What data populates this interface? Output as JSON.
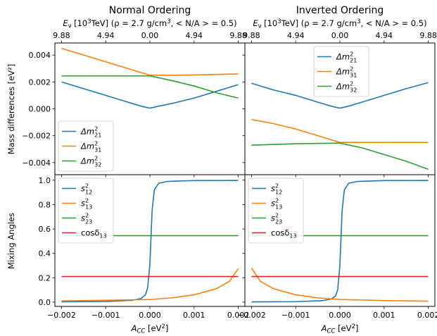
{
  "figure": {
    "xlabel_main": "A",
    "xlabel_sub": "CC",
    "xlabel_unit": " [eV",
    "xlabel_sup": "2",
    "xlabel_close": "]",
    "top_axis_label": "E",
    "top_axis_sub": "ν",
    "top_axis_rest": " [10",
    "top_axis_sup": "3",
    "top_axis_rest2": "TeV] (ρ = 2.7 g/cm",
    "top_axis_sup2": "3",
    "top_axis_rest3": ",  < N/A > = 0.5)",
    "top_tick_labels": [
      "9.88",
      "4.94",
      "0.00",
      "4.94",
      "9.88"
    ],
    "ylabel_top": "Mass differences [eV²]",
    "ylabel_bottom": "Mixing Angles"
  },
  "colors": {
    "blue": "#1f77b4",
    "orange": "#ff7f0e",
    "green": "#2ca02c",
    "red": "#d62728"
  },
  "chart_data": [
    {
      "id": "no_mass",
      "type": "line",
      "title": "Normal Ordering",
      "xlim": [
        -0.00215,
        0.00215
      ],
      "ylim": [
        -0.0049,
        0.0049
      ],
      "x_ticks": [
        "-0.002",
        "-0.001",
        "0.000",
        "0.001",
        "0.002"
      ],
      "y_ticks": [
        -0.004,
        -0.002,
        0.0,
        0.002,
        0.004
      ],
      "y_tick_labels": [
        "−0.004",
        "−0.002",
        "0.000",
        "0.002",
        "0.004"
      ],
      "legend": "bottom-left",
      "series": [
        {
          "name": "Δm²21",
          "label_base": "Δm",
          "label_sub": "21",
          "color": "blue",
          "x": [
            -0.002,
            -0.0015,
            -0.001,
            -0.0005,
            -0.0002,
            0.0,
            0.0002,
            0.0005,
            0.001,
            0.0015,
            0.002
          ],
          "y": [
            0.002,
            0.0015,
            0.001,
            0.0005,
            0.0002,
            5e-05,
            0.0002,
            0.0004,
            0.0008,
            0.0013,
            0.0018
          ]
        },
        {
          "name": "Δm²31",
          "label_base": "Δm",
          "label_sub": "31",
          "color": "orange",
          "x": [
            -0.002,
            -0.0015,
            -0.001,
            -0.0005,
            0.0,
            0.0005,
            0.001,
            0.0015,
            0.002
          ],
          "y": [
            0.0045,
            0.004,
            0.0035,
            0.003,
            0.0025,
            0.0025,
            0.00252,
            0.00256,
            0.0026
          ]
        },
        {
          "name": "Δm²32",
          "label_base": "Δm",
          "label_sub": "32",
          "color": "green",
          "x": [
            -0.002,
            -0.001,
            0.0,
            0.0005,
            0.001,
            0.0015,
            0.002
          ],
          "y": [
            0.00245,
            0.00245,
            0.00245,
            0.0021,
            0.0017,
            0.0012,
            0.0008
          ]
        }
      ]
    },
    {
      "id": "io_mass",
      "type": "line",
      "title": "Inverted Ordering",
      "xlim": [
        -0.00215,
        0.00215
      ],
      "ylim": [
        -0.0049,
        0.0049
      ],
      "x_ticks": [
        "-0.002",
        "-0.001",
        "0.000",
        "0.001",
        "0.002"
      ],
      "legend": "top-right",
      "series": [
        {
          "name": "Δm²21",
          "label_base": "Δm",
          "label_sub": "21",
          "color": "blue",
          "x": [
            -0.002,
            -0.0015,
            -0.001,
            -0.0005,
            -0.0002,
            0.0,
            0.0002,
            0.0005,
            0.001,
            0.0015,
            0.002
          ],
          "y": [
            0.0019,
            0.0014,
            0.001,
            0.0005,
            0.0002,
            5e-05,
            0.0002,
            0.0005,
            0.001,
            0.0015,
            0.00195
          ]
        },
        {
          "name": "Δm²31",
          "label_base": "Δm",
          "label_sub": "31",
          "color": "orange",
          "x": [
            -0.002,
            -0.0015,
            -0.001,
            -0.0005,
            0.0,
            0.0005,
            0.001,
            0.0015,
            0.002
          ],
          "y": [
            -0.0008,
            -0.0011,
            -0.0015,
            -0.002,
            -0.0025,
            -0.0025,
            -0.0025,
            -0.0025,
            -0.0025
          ]
        },
        {
          "name": "Δm²32",
          "label_base": "Δm",
          "label_sub": "32",
          "color": "green",
          "x": [
            -0.002,
            -0.001,
            0.0,
            0.0005,
            0.001,
            0.0015,
            0.002
          ],
          "y": [
            -0.0027,
            -0.0026,
            -0.00255,
            -0.0029,
            -0.0034,
            -0.0039,
            -0.0045
          ]
        }
      ]
    },
    {
      "id": "no_angles",
      "type": "line",
      "xlim": [
        -0.00215,
        0.00215
      ],
      "ylim": [
        -0.035,
        1.045
      ],
      "x_ticks": [
        "-0.002",
        "-0.001",
        "0.000",
        "0.001",
        "0.002"
      ],
      "x_tick_labels": [
        "−0.002",
        "−0.001",
        "0.000",
        "0.001",
        "0.002"
      ],
      "y_ticks": [
        0.0,
        0.2,
        0.4,
        0.6,
        0.8,
        1.0
      ],
      "y_tick_labels": [
        "0.0",
        "0.2",
        "0.4",
        "0.6",
        "0.8",
        "1.0"
      ],
      "legend": "top-left",
      "series": [
        {
          "name": "s²12",
          "label_base": "s",
          "label_sub": "12",
          "color": "blue",
          "x": [
            -0.002,
            -0.001,
            -0.0004,
            -0.0002,
            -0.0001,
            -5e-05,
            0.0,
            5e-05,
            0.0001,
            0.0002,
            0.0004,
            0.001,
            0.002
          ],
          "y": [
            0.003,
            0.006,
            0.015,
            0.03,
            0.06,
            0.12,
            0.31,
            0.75,
            0.92,
            0.975,
            0.99,
            0.997,
            0.998
          ]
        },
        {
          "name": "s²13",
          "label_base": "s",
          "label_sub": "13",
          "color": "orange",
          "x": [
            -0.002,
            -0.001,
            0.0,
            0.0005,
            0.001,
            0.0015,
            0.0018,
            0.002
          ],
          "y": [
            0.01,
            0.015,
            0.022,
            0.035,
            0.06,
            0.11,
            0.17,
            0.275
          ]
        },
        {
          "name": "s²23",
          "label_base": "s",
          "label_sub": "23",
          "color": "green",
          "x": [
            -0.002,
            0.002
          ],
          "y": [
            0.545,
            0.545
          ]
        },
        {
          "name": "cosδ13",
          "label_base": "cosδ",
          "label_sub": "13",
          "color": "red",
          "x": [
            -0.002,
            0.002
          ],
          "y": [
            0.21,
            0.21
          ]
        }
      ]
    },
    {
      "id": "io_angles",
      "type": "line",
      "xlim": [
        -0.00215,
        0.00215
      ],
      "ylim": [
        -0.035,
        1.045
      ],
      "x_ticks": [
        "-0.002",
        "-0.001",
        "0.000",
        "0.001",
        "0.002"
      ],
      "x_tick_labels": [
        "−0.002",
        "−0.001",
        "0.000",
        "0.001",
        "0.002"
      ],
      "legend": "top-left",
      "series": [
        {
          "name": "s²12",
          "label_base": "s",
          "label_sub": "12",
          "color": "blue",
          "x": [
            -0.002,
            -0.001,
            -0.0004,
            -0.0002,
            -0.0001,
            -5e-05,
            0.0,
            5e-05,
            0.0001,
            0.0002,
            0.0004,
            0.001,
            0.002
          ],
          "y": [
            0.002,
            0.004,
            0.012,
            0.025,
            0.05,
            0.1,
            0.3,
            0.75,
            0.92,
            0.975,
            0.99,
            0.997,
            0.998
          ]
        },
        {
          "name": "s²13",
          "label_base": "s",
          "label_sub": "13",
          "color": "orange",
          "x": [
            -0.002,
            -0.0018,
            -0.0015,
            -0.001,
            -0.0005,
            0.0,
            0.001,
            0.002
          ],
          "y": [
            0.28,
            0.17,
            0.11,
            0.06,
            0.035,
            0.022,
            0.013,
            0.008
          ]
        },
        {
          "name": "s²23",
          "label_base": "s",
          "label_sub": "23",
          "color": "green",
          "x": [
            -0.002,
            0.002
          ],
          "y": [
            0.545,
            0.545
          ]
        },
        {
          "name": "cosδ13",
          "label_base": "cosδ",
          "label_sub": "13",
          "color": "red",
          "x": [
            -0.002,
            0.002
          ],
          "y": [
            0.21,
            0.21
          ]
        }
      ]
    }
  ]
}
